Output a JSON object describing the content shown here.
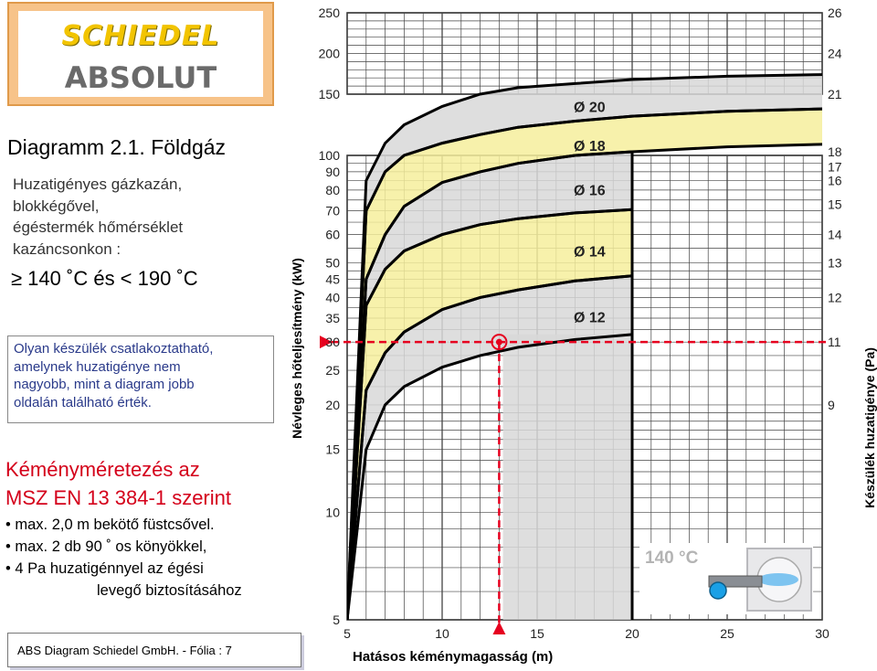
{
  "logo": {
    "brand": "SCHIEDEL",
    "product": "ABSOLUT"
  },
  "title": "Diagramm 2.1. Földgáz",
  "subtitle": [
    "Huzatigényes gázkazán,",
    "blokkégővel,",
    "égéstermék hőmérséklet",
    "kazáncsonkon :"
  ],
  "temp_range": "≥ 140 ˚C és < 190 ˚C",
  "note": [
    "Olyan készülék csatlakoztatható,",
    "amelynek huzatigénye nem",
    "nagyobb, mint a diagram jobb",
    "oldalán található érték."
  ],
  "standard": [
    "Kéményméretezés az",
    "MSZ EN 13 384-1 szerint"
  ],
  "bullets": [
    "• max. 2,0 m bekötő füstcsővel.",
    "• max. 2 db 90 ˚  os könyökkel,",
    "• 4 Pa huzatigénnyel az égési"
  ],
  "bullet_cont": "levegő biztosításához",
  "footer": "ABS Diagram   Schiedel GmbH. - Fólia : 7",
  "chart_data": {
    "type": "area",
    "ylabel": "Névleges hőteljesítmény (kW)",
    "ylabel_right": "Készülék huzatigénye (Pa)",
    "xlabel": "Hatásos kéménymagasság (m)",
    "x_ticks": [
      "5",
      "10",
      "15",
      "20",
      "25",
      "30"
    ],
    "y_ticks_lower": [
      "5",
      "10",
      "15",
      "20",
      "25",
      "30",
      "35",
      "40",
      "45",
      "50",
      "60",
      "70",
      "80",
      "90",
      "100"
    ],
    "y_ticks_upper": [
      "150",
      "200",
      "250"
    ],
    "right_ticks": [
      {
        "kw": 5,
        "label": ""
      },
      {
        "kw": 20,
        "label": "9"
      },
      {
        "kw": 30,
        "label": "11"
      },
      {
        "kw": 40,
        "label": "12"
      },
      {
        "kw": 50,
        "label": "13"
      },
      {
        "kw": 60,
        "label": "14"
      },
      {
        "kw": 73,
        "label": "15"
      },
      {
        "kw": 85,
        "label": "16"
      },
      {
        "kw": 93,
        "label": "17"
      },
      {
        "kw": 103,
        "label": "18"
      },
      {
        "kw": 150,
        "label": "21"
      },
      {
        "kw": 200,
        "label": "24"
      },
      {
        "kw": 250,
        "label": "26"
      }
    ],
    "xlim": [
      5,
      30
    ],
    "series": [
      {
        "name": "Ø 12",
        "color": "#d8d8d8",
        "bottom": [
          [
            5,
            5
          ],
          [
            6,
            15
          ],
          [
            7,
            20
          ],
          [
            8,
            22.5
          ],
          [
            10,
            25.5
          ],
          [
            12,
            27.5
          ],
          [
            14,
            29
          ],
          [
            17,
            30.5
          ],
          [
            20,
            31.5
          ]
        ],
        "top": [
          [
            5,
            5
          ],
          [
            6,
            22
          ],
          [
            7,
            28
          ],
          [
            8,
            32
          ],
          [
            10,
            37
          ],
          [
            12,
            40
          ],
          [
            14,
            42
          ],
          [
            17,
            44.5
          ],
          [
            20,
            46
          ]
        ]
      },
      {
        "name": "Ø 14",
        "color": "#f6ee9c",
        "bottom": [
          [
            5,
            5
          ],
          [
            6,
            22
          ],
          [
            7,
            28
          ],
          [
            8,
            32
          ],
          [
            10,
            37
          ],
          [
            12,
            40
          ],
          [
            14,
            42
          ],
          [
            17,
            44.5
          ],
          [
            20,
            46
          ]
        ],
        "top": [
          [
            5,
            5
          ],
          [
            6,
            38
          ],
          [
            7,
            48
          ],
          [
            8,
            54
          ],
          [
            10,
            60
          ],
          [
            12,
            64
          ],
          [
            14,
            66.5
          ],
          [
            17,
            69
          ],
          [
            20,
            70.5
          ]
        ]
      },
      {
        "name": "Ø 16",
        "color": "#d8d8d8",
        "bottom": [
          [
            5,
            5
          ],
          [
            6,
            38
          ],
          [
            7,
            48
          ],
          [
            8,
            54
          ],
          [
            10,
            60
          ],
          [
            12,
            64
          ],
          [
            14,
            66.5
          ],
          [
            17,
            69
          ],
          [
            20,
            70.5
          ]
        ],
        "top": [
          [
            5,
            5
          ],
          [
            6,
            45
          ],
          [
            7,
            60
          ],
          [
            8,
            72
          ],
          [
            10,
            84
          ],
          [
            12,
            90
          ],
          [
            14,
            95
          ],
          [
            17,
            100
          ],
          [
            20,
            103
          ]
        ]
      },
      {
        "name": "Ø 18",
        "color": "#f6ee9c",
        "bottom": [
          [
            5,
            5
          ],
          [
            6,
            45
          ],
          [
            7,
            60
          ],
          [
            8,
            72
          ],
          [
            10,
            84
          ],
          [
            12,
            90
          ],
          [
            14,
            95
          ],
          [
            17,
            100
          ],
          [
            20,
            103
          ],
          [
            25,
            107
          ],
          [
            30,
            109
          ]
        ],
        "top": [
          [
            5,
            5
          ],
          [
            6,
            70
          ],
          [
            7,
            90
          ],
          [
            8,
            100
          ],
          [
            10,
            110
          ],
          [
            12,
            117
          ],
          [
            14,
            123
          ],
          [
            17,
            128
          ],
          [
            20,
            132
          ],
          [
            25,
            136
          ],
          [
            30,
            138
          ]
        ]
      },
      {
        "name": "Ø 20",
        "color": "#d8d8d8",
        "bottom": [
          [
            5,
            5
          ],
          [
            6,
            70
          ],
          [
            7,
            90
          ],
          [
            8,
            100
          ],
          [
            10,
            110
          ],
          [
            12,
            117
          ],
          [
            14,
            123
          ],
          [
            17,
            128
          ],
          [
            20,
            132
          ],
          [
            25,
            136
          ],
          [
            30,
            138
          ]
        ],
        "top": [
          [
            5,
            5
          ],
          [
            6,
            85
          ],
          [
            7,
            110
          ],
          [
            8,
            125
          ],
          [
            10,
            140
          ],
          [
            12,
            150
          ],
          [
            14,
            158
          ],
          [
            17,
            163
          ],
          [
            20,
            168
          ],
          [
            25,
            172
          ],
          [
            30,
            174
          ]
        ]
      }
    ],
    "example_point": {
      "x": 13,
      "y": 30
    },
    "temperature_badge": "140 °C"
  }
}
